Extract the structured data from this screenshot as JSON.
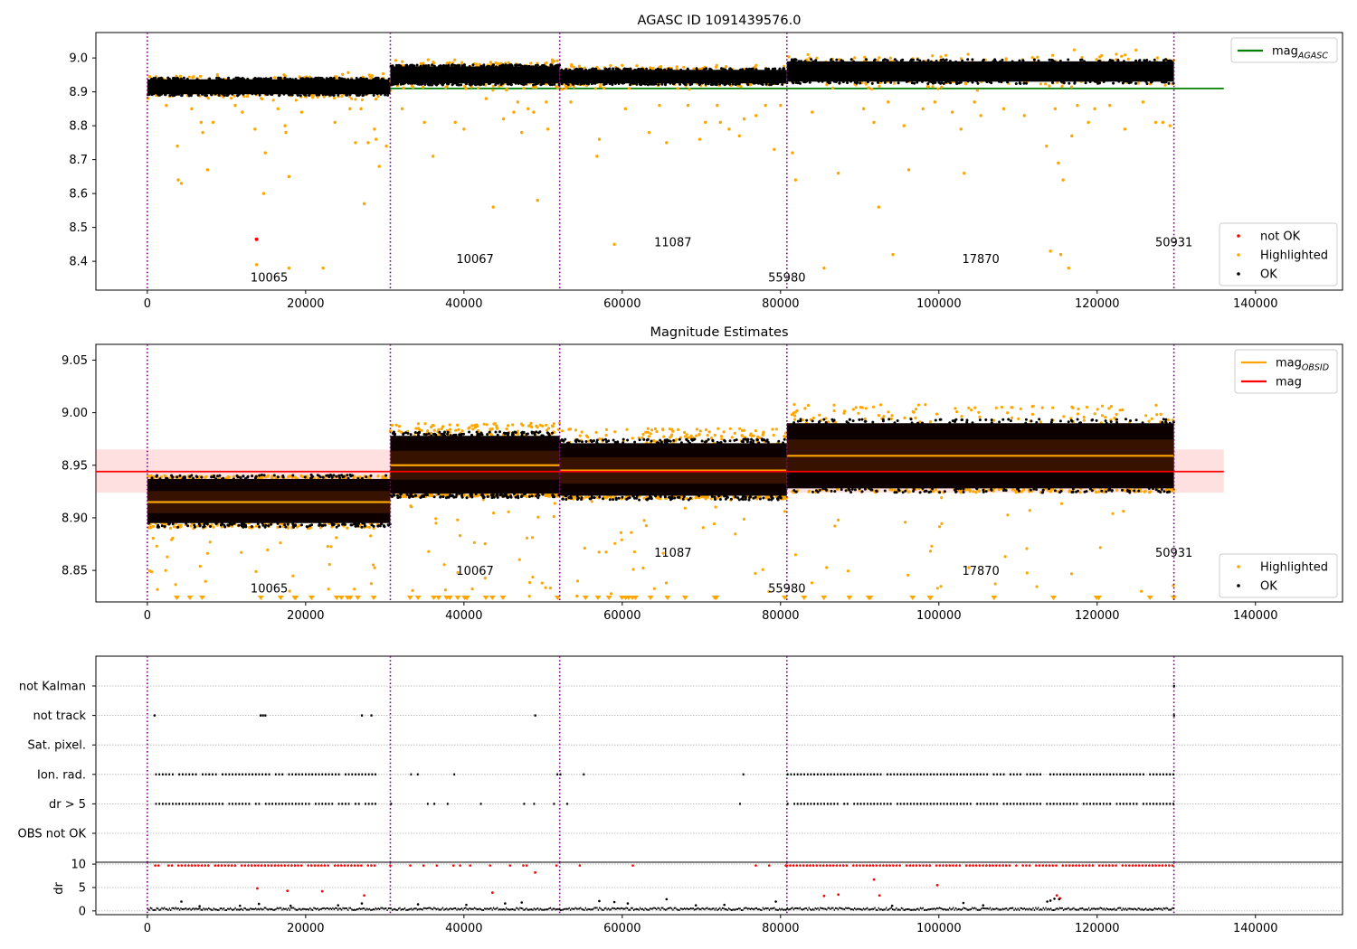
{
  "chart_data": [
    {
      "type": "scatter",
      "title": "AGASC ID 1091439576.0",
      "xlim": [
        -6500,
        151000
      ],
      "ylim": [
        8.315,
        9.075
      ],
      "xticks": [
        0,
        20000,
        40000,
        60000,
        80000,
        100000,
        120000,
        140000
      ],
      "xtick_labels": [
        "0",
        "20000",
        "40000",
        "60000",
        "80000",
        "100000",
        "120000",
        "140000"
      ],
      "yticks": [
        8.4,
        8.5,
        8.6,
        8.7,
        8.8,
        8.9,
        9.0
      ],
      "ytick_labels": [
        "8.4",
        "8.5",
        "8.6",
        "8.7",
        "8.8",
        "8.9",
        "9.0"
      ],
      "obs_boundaries": [
        0,
        30700,
        52100,
        80800,
        129700
      ],
      "obsid_labels": [
        {
          "text": "10065",
          "x": 15400,
          "y": 8.34
        },
        {
          "text": "10067",
          "x": 41400,
          "y": 8.395
        },
        {
          "text": "11087",
          "x": 66400,
          "y": 8.445
        },
        {
          "text": "55980",
          "x": 80800,
          "y": 8.34
        },
        {
          "text": "17870",
          "x": 105300,
          "y": 8.395
        },
        {
          "text": "50931",
          "x": 129700,
          "y": 8.445
        }
      ],
      "mag_agasc": 8.91,
      "mag_agasc_xrange": [
        0,
        136000
      ],
      "segments": [
        {
          "x0": 0,
          "x1": 30700,
          "center": 8.915,
          "spread": 0.022
        },
        {
          "x0": 30700,
          "x1": 52100,
          "center": 8.95,
          "spread": 0.025
        },
        {
          "x0": 52100,
          "x1": 80800,
          "center": 8.945,
          "spread": 0.02
        },
        {
          "x0": 80800,
          "x1": 129700,
          "center": 8.96,
          "spread": 0.03
        }
      ],
      "not_ok_points": [
        [
          13800,
          8.465
        ]
      ],
      "highlighted_outliers": [
        [
          2400,
          8.86
        ],
        [
          3800,
          8.74
        ],
        [
          3900,
          8.64
        ],
        [
          4300,
          8.63
        ],
        [
          5600,
          8.85
        ],
        [
          6800,
          8.81
        ],
        [
          7000,
          8.78
        ],
        [
          7600,
          8.67
        ],
        [
          8300,
          8.81
        ],
        [
          11100,
          8.86
        ],
        [
          12000,
          8.84
        ],
        [
          13600,
          8.79
        ],
        [
          13800,
          8.39
        ],
        [
          14700,
          8.6
        ],
        [
          14900,
          8.72
        ],
        [
          16500,
          8.85
        ],
        [
          17400,
          8.8
        ],
        [
          17500,
          8.78
        ],
        [
          17900,
          8.65
        ],
        [
          17900,
          8.38
        ],
        [
          19500,
          8.84
        ],
        [
          22200,
          8.38
        ],
        [
          23700,
          8.81
        ],
        [
          25600,
          8.85
        ],
        [
          26300,
          8.75
        ],
        [
          27000,
          8.85
        ],
        [
          27400,
          8.57
        ],
        [
          27900,
          8.75
        ],
        [
          28700,
          8.79
        ],
        [
          28900,
          8.76
        ],
        [
          29300,
          8.68
        ],
        [
          30200,
          8.74
        ],
        [
          32200,
          8.85
        ],
        [
          35000,
          8.81
        ],
        [
          36100,
          8.71
        ],
        [
          38900,
          8.81
        ],
        [
          40000,
          8.79
        ],
        [
          42800,
          8.88
        ],
        [
          43700,
          8.56
        ],
        [
          45000,
          8.82
        ],
        [
          46300,
          8.84
        ],
        [
          46800,
          8.87
        ],
        [
          47300,
          8.78
        ],
        [
          48100,
          8.85
        ],
        [
          48800,
          8.84
        ],
        [
          49300,
          8.58
        ],
        [
          50400,
          8.87
        ],
        [
          50600,
          8.79
        ],
        [
          53500,
          8.87
        ],
        [
          56800,
          8.71
        ],
        [
          57100,
          8.76
        ],
        [
          59000,
          8.45
        ],
        [
          60400,
          8.85
        ],
        [
          63400,
          8.78
        ],
        [
          64700,
          8.86
        ],
        [
          65600,
          8.75
        ],
        [
          68300,
          8.86
        ],
        [
          69800,
          8.76
        ],
        [
          70500,
          8.81
        ],
        [
          72000,
          8.86
        ],
        [
          72400,
          8.81
        ],
        [
          73500,
          8.79
        ],
        [
          74800,
          8.77
        ],
        [
          75400,
          8.82
        ],
        [
          76900,
          8.83
        ],
        [
          78100,
          8.86
        ],
        [
          79200,
          8.73
        ],
        [
          80000,
          8.86
        ],
        [
          81500,
          8.72
        ],
        [
          81900,
          8.64
        ],
        [
          84000,
          8.84
        ],
        [
          85500,
          8.38
        ],
        [
          87300,
          8.66
        ],
        [
          90500,
          8.85
        ],
        [
          91800,
          8.81
        ],
        [
          92400,
          8.56
        ],
        [
          93600,
          8.87
        ],
        [
          94200,
          8.42
        ],
        [
          95600,
          8.8
        ],
        [
          96200,
          8.67
        ],
        [
          98000,
          8.85
        ],
        [
          99500,
          8.87
        ],
        [
          101700,
          8.84
        ],
        [
          102800,
          8.79
        ],
        [
          103200,
          8.66
        ],
        [
          104500,
          8.87
        ],
        [
          105300,
          8.83
        ],
        [
          108200,
          8.85
        ],
        [
          110800,
          8.83
        ],
        [
          113600,
          8.74
        ],
        [
          114100,
          8.43
        ],
        [
          114700,
          8.85
        ],
        [
          115100,
          8.69
        ],
        [
          115400,
          8.42
        ],
        [
          115700,
          8.64
        ],
        [
          116400,
          8.38
        ],
        [
          116800,
          8.77
        ],
        [
          117500,
          8.86
        ],
        [
          118900,
          8.81
        ],
        [
          119700,
          8.85
        ],
        [
          121600,
          8.86
        ],
        [
          123500,
          8.79
        ],
        [
          125800,
          8.87
        ],
        [
          127400,
          8.81
        ],
        [
          128300,
          8.81
        ],
        [
          129200,
          8.8
        ]
      ],
      "legend": [
        {
          "label": "mag",
          "subscript": "AGASC",
          "color": "#008000",
          "kind": "line"
        },
        {
          "label": "not OK",
          "color": "#ff0000",
          "kind": "dot"
        },
        {
          "label": "Highlighted",
          "color": "#ffa500",
          "kind": "dot"
        },
        {
          "label": "OK",
          "color": "#000000",
          "kind": "dot"
        }
      ]
    },
    {
      "type": "scatter",
      "title": "Magnitude Estimates",
      "xlim": [
        -6500,
        151000
      ],
      "ylim": [
        8.82,
        9.065
      ],
      "xticks": [
        0,
        20000,
        40000,
        60000,
        80000,
        100000,
        120000,
        140000
      ],
      "xtick_labels": [
        "0",
        "20000",
        "40000",
        "60000",
        "80000",
        "100000",
        "120000",
        "140000"
      ],
      "yticks": [
        8.85,
        8.9,
        8.95,
        9.0,
        9.05
      ],
      "ytick_labels": [
        "8.85",
        "8.90",
        "8.95",
        "9.00",
        "9.05"
      ],
      "obs_boundaries": [
        0,
        30700,
        52100,
        80800,
        129700
      ],
      "obsid_labels": [
        {
          "text": "10065",
          "x": 15400,
          "y": 8.829
        },
        {
          "text": "10067",
          "x": 41400,
          "y": 8.846
        },
        {
          "text": "11087",
          "x": 66400,
          "y": 8.863
        },
        {
          "text": "55980",
          "x": 80800,
          "y": 8.829
        },
        {
          "text": "17870",
          "x": 105300,
          "y": 8.846
        },
        {
          "text": "50931",
          "x": 129700,
          "y": 8.863
        }
      ],
      "mag": 8.944,
      "mag_band": [
        8.924,
        8.965
      ],
      "mag_xrange": [
        -6500,
        136000
      ],
      "segments": [
        {
          "x0": 0,
          "x1": 30700,
          "mag_obsid": 8.915,
          "dense_lo": 8.895,
          "dense_hi": 8.937,
          "high_lo": 8.89,
          "high_hi": 8.94
        },
        {
          "x0": 30700,
          "x1": 52100,
          "mag_obsid": 8.95,
          "dense_lo": 8.923,
          "dense_hi": 8.978,
          "high_lo": 8.92,
          "high_hi": 8.99
        },
        {
          "x0": 52100,
          "x1": 80800,
          "mag_obsid": 8.945,
          "dense_lo": 8.921,
          "dense_hi": 8.971,
          "high_lo": 8.918,
          "high_hi": 8.985
        },
        {
          "x0": 80800,
          "x1": 129700,
          "mag_obsid": 8.959,
          "dense_lo": 8.928,
          "dense_hi": 8.99,
          "high_lo": 8.924,
          "high_hi": 9.008
        }
      ],
      "legend": [
        {
          "label": "mag",
          "subscript": "OBSID",
          "color": "#ffa500",
          "kind": "line"
        },
        {
          "label": "mag",
          "color": "#ff0000",
          "kind": "line"
        },
        {
          "label": "Highlighted",
          "color": "#ffa500",
          "kind": "dot"
        },
        {
          "label": "OK",
          "color": "#000000",
          "kind": "dot"
        }
      ]
    },
    {
      "type": "scatter",
      "title": "",
      "xlim": [
        -6500,
        151000
      ],
      "yticks_categories": [
        "not Kalman",
        "not track",
        "Sat. pixel.",
        "Ion. rad.",
        "dr > 5",
        "OBS not OK"
      ],
      "obs_boundaries": [
        0,
        30700,
        52100,
        80800,
        129700
      ],
      "flag_points": {
        "not Kalman": [
          129700
        ],
        "not track": [
          900,
          14300,
          14600,
          14900,
          27100,
          28300,
          49000,
          129700
        ],
        "Sat. pixel.": [],
        "Ion. rad.": "dense",
        "dr > 5": "dense",
        "OBS not OK": []
      }
    },
    {
      "type": "scatter",
      "title": "",
      "ylabel": "dr",
      "xlim": [
        -6500,
        151000
      ],
      "ylim": [
        -0.8,
        10.4
      ],
      "yticks": [
        0,
        5,
        10
      ],
      "ytick_labels": [
        "0",
        "5",
        "10"
      ],
      "xticks": [
        0,
        20000,
        40000,
        60000,
        80000,
        100000,
        120000,
        140000
      ],
      "xtick_labels": [
        "0",
        "20000",
        "40000",
        "60000",
        "80000",
        "100000",
        "120000",
        "140000"
      ],
      "obs_boundaries": [
        0,
        30700,
        52100,
        80800,
        129700
      ],
      "clipped_value": 9.7,
      "red_outliers": [
        [
          13900,
          4.8
        ],
        [
          17700,
          4.3
        ],
        [
          22100,
          4.2
        ],
        [
          27400,
          3.3
        ],
        [
          43600,
          3.9
        ],
        [
          49000,
          8.2
        ],
        [
          91800,
          6.7
        ],
        [
          92500,
          3.3
        ],
        [
          99800,
          5.5
        ],
        [
          85500,
          3.2
        ],
        [
          87300,
          3.5
        ],
        [
          114900,
          3.3
        ],
        [
          115300,
          2.7
        ]
      ],
      "black_outliers": [
        [
          4300,
          2.0
        ],
        [
          6600,
          1.0
        ],
        [
          11700,
          1.1
        ],
        [
          14100,
          1.5
        ],
        [
          18100,
          1.1
        ],
        [
          24100,
          1.2
        ],
        [
          27100,
          1.6
        ],
        [
          34200,
          1.4
        ],
        [
          40300,
          1.3
        ],
        [
          45200,
          1.6
        ],
        [
          47300,
          1.8
        ],
        [
          57100,
          2.1
        ],
        [
          59000,
          1.9
        ],
        [
          60700,
          1.6
        ],
        [
          65600,
          2.5
        ],
        [
          69300,
          1.2
        ],
        [
          72900,
          1.3
        ],
        [
          79400,
          2.0
        ],
        [
          94100,
          1.1
        ],
        [
          103100,
          1.7
        ],
        [
          105600,
          1.2
        ],
        [
          113700,
          2.0
        ],
        [
          114100,
          2.2
        ],
        [
          114600,
          2.6
        ],
        [
          115200,
          2.5
        ]
      ]
    }
  ]
}
